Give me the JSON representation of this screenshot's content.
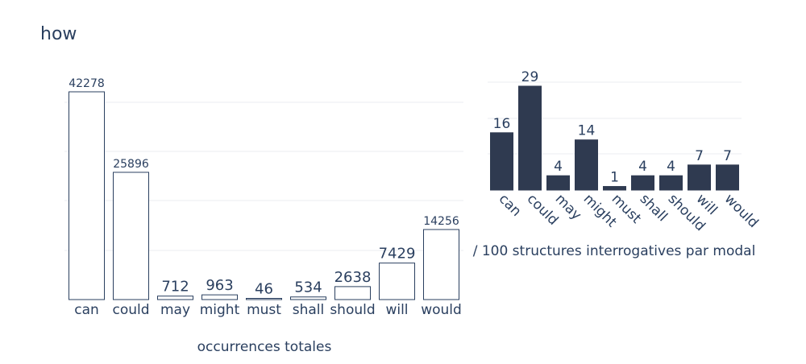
{
  "title": "how",
  "chart_data": [
    {
      "type": "bar",
      "categories": [
        "can",
        "could",
        "may",
        "might",
        "must",
        "shall",
        "should",
        "will",
        "would"
      ],
      "values": [
        42278,
        25896,
        712,
        963,
        46,
        534,
        2638,
        7429,
        14256
      ],
      "xlabel": "occurrences totales",
      "ylabel": "",
      "ylim": [
        0,
        42278
      ],
      "grid": true,
      "bar_fill": "#ffffff",
      "bar_stroke": "#2a3f5f"
    },
    {
      "type": "bar",
      "categories": [
        "can",
        "could",
        "may",
        "might",
        "must",
        "shall",
        "should",
        "will",
        "would"
      ],
      "values": [
        16,
        29,
        4,
        14,
        1,
        4,
        4,
        7,
        7
      ],
      "xlabel": "/ 100 structures interrogatives par modal",
      "ylabel": "",
      "ylim": [
        0,
        29
      ],
      "grid": true,
      "bar_fill": "#2f3a50",
      "bar_stroke": "#2f3a50"
    }
  ]
}
